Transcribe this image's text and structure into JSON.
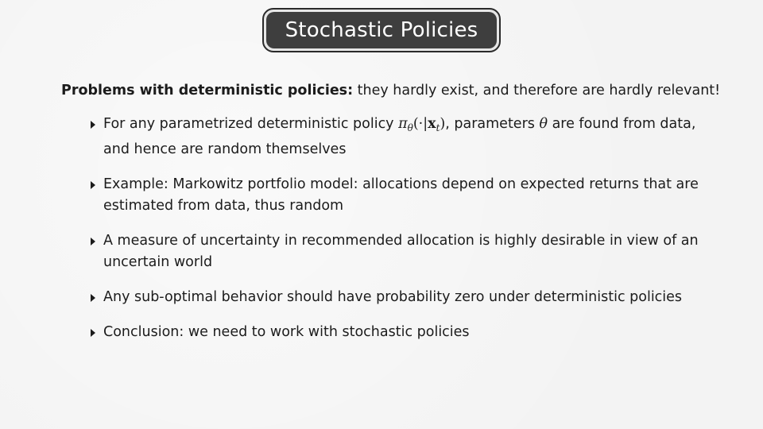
{
  "slide": {
    "title": "Stochastic Policies",
    "lead": {
      "bold": "Problems with deterministic policies:",
      "rest": " they hardly exist, and therefore are hardly relevant!"
    },
    "bullets": [
      {
        "text_before": "For any parametrized deterministic policy ",
        "math": {
          "pi": "π",
          "sub_theta": "θ",
          "open": "(·|",
          "x": "x",
          "sub_t": "t",
          "close": ")"
        },
        "text_middle": ", parameters ",
        "theta": "θ",
        "text_after": " are found from data, and hence are random themselves"
      },
      {
        "text": "Example: Markowitz portfolio model: allocations depend on expected returns that are estimated from data, thus random"
      },
      {
        "text": "A measure of uncertainty in recommended allocation is highly desirable in view of an uncertain world"
      },
      {
        "text": "Any sub-optimal behavior should have probability zero under deterministic policies"
      },
      {
        "text": "Conclusion: we need to work with stochastic policies"
      }
    ]
  }
}
